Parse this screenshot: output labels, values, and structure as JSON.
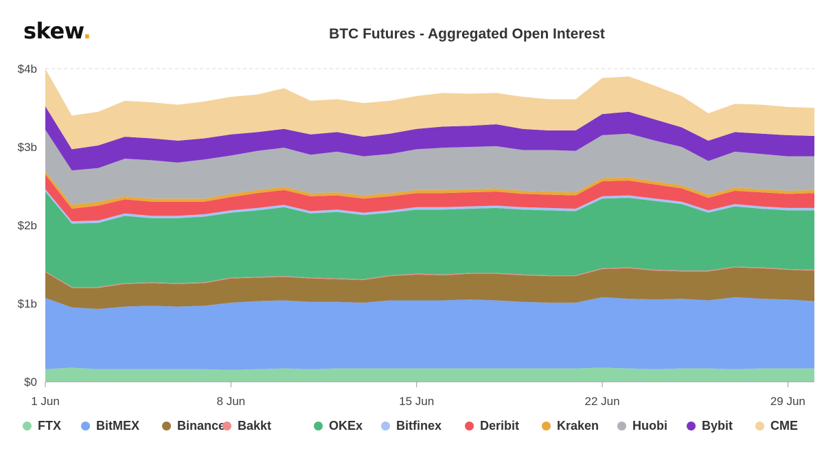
{
  "logo": {
    "text": "skew",
    "dot": "."
  },
  "chart_data": {
    "type": "area",
    "stacked": true,
    "title": "BTC Futures - Aggregated Open Interest",
    "y_tick_labels": [
      "$0",
      "$1b",
      "$2b",
      "$3b",
      "$4b"
    ],
    "ylim": [
      0,
      4
    ],
    "y_unit": "billions USD",
    "x": [
      1,
      2,
      3,
      4,
      5,
      6,
      7,
      8,
      9,
      10,
      11,
      12,
      13,
      14,
      15,
      16,
      17,
      18,
      19,
      20,
      21,
      22,
      23,
      24,
      25,
      26,
      27,
      28,
      29,
      30
    ],
    "x_tick_labels": [
      {
        "day": 1,
        "label": "1 Jun"
      },
      {
        "day": 8,
        "label": "8 Jun"
      },
      {
        "day": 15,
        "label": "15 Jun"
      },
      {
        "day": 22,
        "label": "22 Jun"
      },
      {
        "day": 29,
        "label": "29 Jun"
      }
    ],
    "grid": "horizontal dashed",
    "legend_position": "bottom",
    "series": [
      {
        "name": "FTX",
        "color": "#8fd6a7",
        "values": [
          0.16,
          0.18,
          0.16,
          0.16,
          0.16,
          0.16,
          0.16,
          0.15,
          0.16,
          0.17,
          0.16,
          0.17,
          0.17,
          0.17,
          0.17,
          0.17,
          0.17,
          0.17,
          0.17,
          0.17,
          0.17,
          0.18,
          0.17,
          0.16,
          0.17,
          0.17,
          0.16,
          0.17,
          0.17,
          0.17
        ]
      },
      {
        "name": "BitMEX",
        "color": "#7ba6f4",
        "values": [
          0.91,
          0.77,
          0.77,
          0.8,
          0.81,
          0.8,
          0.81,
          0.86,
          0.87,
          0.87,
          0.86,
          0.85,
          0.84,
          0.87,
          0.87,
          0.87,
          0.88,
          0.87,
          0.85,
          0.84,
          0.84,
          0.9,
          0.89,
          0.89,
          0.89,
          0.87,
          0.92,
          0.89,
          0.88,
          0.86
        ]
      },
      {
        "name": "Binance",
        "color": "#9c7a3c",
        "values": [
          0.33,
          0.25,
          0.27,
          0.29,
          0.29,
          0.29,
          0.29,
          0.31,
          0.3,
          0.3,
          0.3,
          0.29,
          0.29,
          0.31,
          0.33,
          0.32,
          0.33,
          0.34,
          0.34,
          0.34,
          0.34,
          0.36,
          0.39,
          0.37,
          0.35,
          0.37,
          0.38,
          0.39,
          0.38,
          0.39
        ]
      },
      {
        "name": "Bakkt",
        "color": "#f28a8a",
        "values": [
          0.01,
          0.01,
          0.01,
          0.01,
          0.01,
          0.01,
          0.01,
          0.01,
          0.01,
          0.01,
          0.01,
          0.01,
          0.01,
          0.01,
          0.01,
          0.01,
          0.01,
          0.01,
          0.01,
          0.01,
          0.01,
          0.01,
          0.01,
          0.01,
          0.01,
          0.01,
          0.01,
          0.01,
          0.01,
          0.01
        ]
      },
      {
        "name": "OKEx",
        "color": "#4db87e",
        "values": [
          1.02,
          0.81,
          0.82,
          0.86,
          0.82,
          0.83,
          0.84,
          0.83,
          0.85,
          0.88,
          0.82,
          0.85,
          0.82,
          0.8,
          0.82,
          0.83,
          0.82,
          0.83,
          0.83,
          0.83,
          0.82,
          0.89,
          0.89,
          0.88,
          0.85,
          0.74,
          0.77,
          0.75,
          0.75,
          0.76
        ]
      },
      {
        "name": "Bitfinex",
        "color": "#a7c3f5",
        "values": [
          0.03,
          0.03,
          0.03,
          0.03,
          0.03,
          0.03,
          0.03,
          0.03,
          0.03,
          0.03,
          0.03,
          0.03,
          0.03,
          0.03,
          0.03,
          0.03,
          0.03,
          0.03,
          0.03,
          0.03,
          0.03,
          0.03,
          0.03,
          0.03,
          0.03,
          0.03,
          0.03,
          0.03,
          0.03,
          0.03
        ]
      },
      {
        "name": "Deribit",
        "color": "#f2545b",
        "values": [
          0.19,
          0.16,
          0.19,
          0.18,
          0.18,
          0.18,
          0.16,
          0.17,
          0.19,
          0.19,
          0.19,
          0.18,
          0.18,
          0.18,
          0.18,
          0.18,
          0.18,
          0.18,
          0.17,
          0.17,
          0.17,
          0.19,
          0.19,
          0.18,
          0.17,
          0.16,
          0.17,
          0.18,
          0.18,
          0.19
        ]
      },
      {
        "name": "Kraken",
        "color": "#e9a83a",
        "values": [
          0.04,
          0.05,
          0.05,
          0.04,
          0.04,
          0.04,
          0.04,
          0.04,
          0.04,
          0.04,
          0.04,
          0.04,
          0.04,
          0.04,
          0.04,
          0.04,
          0.04,
          0.04,
          0.04,
          0.04,
          0.04,
          0.04,
          0.04,
          0.04,
          0.04,
          0.04,
          0.04,
          0.04,
          0.04,
          0.04
        ]
      },
      {
        "name": "Huobi",
        "color": "#afb3b8",
        "values": [
          0.53,
          0.44,
          0.43,
          0.48,
          0.49,
          0.46,
          0.5,
          0.49,
          0.5,
          0.5,
          0.49,
          0.52,
          0.5,
          0.5,
          0.52,
          0.54,
          0.54,
          0.54,
          0.52,
          0.53,
          0.53,
          0.55,
          0.56,
          0.52,
          0.49,
          0.43,
          0.46,
          0.45,
          0.44,
          0.43
        ]
      },
      {
        "name": "Bybit",
        "color": "#7b35c4",
        "values": [
          0.3,
          0.27,
          0.29,
          0.28,
          0.28,
          0.28,
          0.27,
          0.27,
          0.24,
          0.24,
          0.26,
          0.25,
          0.25,
          0.26,
          0.26,
          0.27,
          0.27,
          0.28,
          0.27,
          0.25,
          0.26,
          0.27,
          0.28,
          0.27,
          0.25,
          0.26,
          0.25,
          0.26,
          0.27,
          0.26
        ]
      },
      {
        "name": "CME",
        "color": "#f4d39c",
        "values": [
          0.48,
          0.43,
          0.43,
          0.46,
          0.46,
          0.46,
          0.47,
          0.48,
          0.48,
          0.52,
          0.43,
          0.42,
          0.43,
          0.42,
          0.42,
          0.43,
          0.41,
          0.4,
          0.41,
          0.4,
          0.4,
          0.46,
          0.45,
          0.43,
          0.4,
          0.35,
          0.36,
          0.37,
          0.36,
          0.36
        ]
      }
    ]
  }
}
